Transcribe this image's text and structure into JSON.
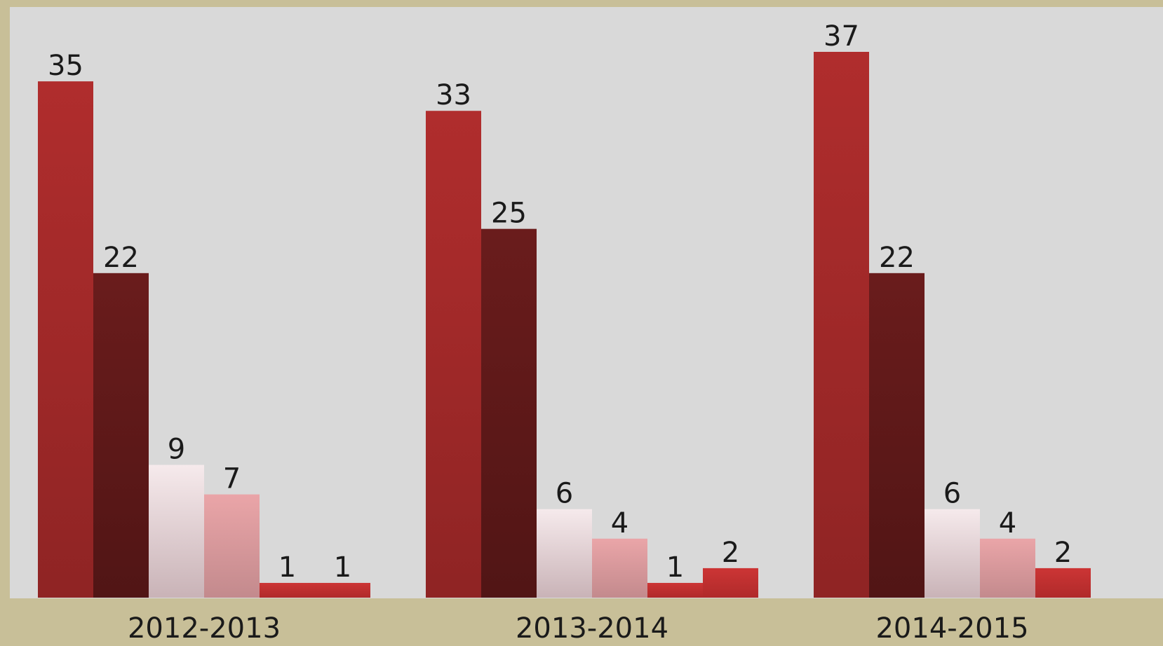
{
  "chart_data": {
    "type": "bar",
    "title": "",
    "xlabel": "",
    "ylabel": "",
    "categories": [
      "2012-2013",
      "2013-2014",
      "2014-2015"
    ],
    "ylim": [
      0,
      37
    ],
    "grid": false,
    "legend": "none",
    "series": [
      {
        "color": "#a32a2a",
        "values": [
          35,
          33,
          37
        ]
      },
      {
        "color": "#5c1818",
        "values": [
          22,
          25,
          22
        ]
      },
      {
        "color": "#f2e4e6",
        "values": [
          9,
          6,
          6
        ]
      },
      {
        "color": "#e09a9d",
        "values": [
          7,
          4,
          4
        ]
      },
      {
        "color": "#c63333",
        "values": [
          1,
          1,
          null
        ]
      },
      {
        "color": "#c63333",
        "values": [
          1,
          2,
          2
        ]
      }
    ],
    "colors": {
      "frame": "#c8bf98",
      "plot_background": "#d9d9d9",
      "label_text": "#1a1a1a"
    }
  }
}
